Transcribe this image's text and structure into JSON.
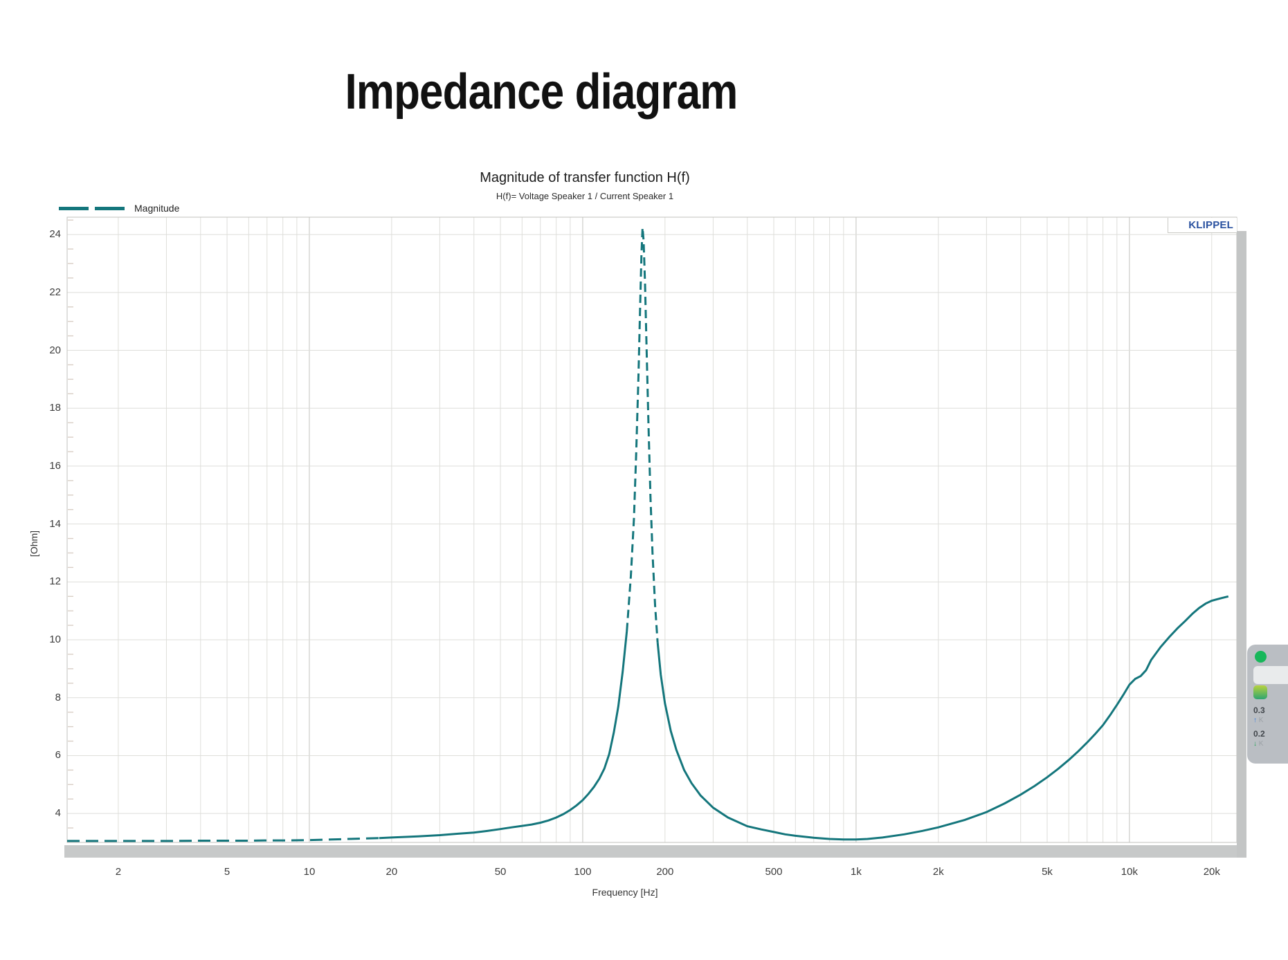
{
  "page_title": "Impedance diagram",
  "chart": {
    "title": "Magnitude of transfer function H(f)",
    "subtitle": "H(f)= Voltage Speaker 1 / Current Speaker 1",
    "legend_label": "Magnitude",
    "watermark": "KLIPPEL",
    "xlabel": "Frequency [Hz]",
    "ylabel": "[Ohm]",
    "colors": {
      "line": "#14767c",
      "watermark_blue": "#2a52a0",
      "grid": "#dededa",
      "grid_decade": "#c3c3be"
    }
  },
  "overlay_widget": {
    "rows": [
      {
        "value": "0.3",
        "arrow": "↑",
        "caption": "K"
      },
      {
        "value": "0.2",
        "arrow": "↓",
        "caption": "K"
      }
    ]
  },
  "chart_data": {
    "type": "line",
    "title": "Magnitude of transfer function H(f)",
    "subtitle": "H(f)= Voltage Speaker 1 / Current Speaker 1",
    "xlabel": "Frequency [Hz]",
    "ylabel": "[Ohm]",
    "x_scale": "log",
    "xlim": [
      1.3,
      24700
    ],
    "ylim": [
      3.0,
      24.6
    ],
    "grid": true,
    "legend_position": "top-left",
    "y_ticks": [
      4,
      6,
      8,
      10,
      12,
      14,
      16,
      18,
      20,
      22,
      24
    ],
    "y_minor_step": 0.5,
    "x_ticks": [
      {
        "v": 2,
        "label": "2"
      },
      {
        "v": 5,
        "label": "5"
      },
      {
        "v": 10,
        "label": "10"
      },
      {
        "v": 20,
        "label": "20"
      },
      {
        "v": 50,
        "label": "50"
      },
      {
        "v": 100,
        "label": "100"
      },
      {
        "v": 200,
        "label": "200"
      },
      {
        "v": 500,
        "label": "500"
      },
      {
        "v": 1000,
        "label": "1k"
      },
      {
        "v": 2000,
        "label": "2k"
      },
      {
        "v": 5000,
        "label": "5k"
      },
      {
        "v": 10000,
        "label": "10k"
      },
      {
        "v": 20000,
        "label": "20k"
      }
    ],
    "series": [
      {
        "name": "Magnitude",
        "color": "#14767c",
        "style": "dashed",
        "peak": {
          "frequency_hz": 165,
          "ohm": 24.24
        },
        "points": [
          [
            1.3,
            3.05
          ],
          [
            2,
            3.05
          ],
          [
            3,
            3.05
          ],
          [
            4,
            3.06
          ],
          [
            5,
            3.06
          ],
          [
            6,
            3.06
          ],
          [
            7,
            3.07
          ],
          [
            8,
            3.07
          ],
          [
            10,
            3.08
          ],
          [
            12,
            3.1
          ],
          [
            15,
            3.13
          ],
          [
            18,
            3.15
          ],
          [
            20,
            3.17
          ],
          [
            25,
            3.21
          ],
          [
            30,
            3.25
          ],
          [
            35,
            3.3
          ],
          [
            40,
            3.34
          ],
          [
            45,
            3.4
          ],
          [
            50,
            3.46
          ],
          [
            55,
            3.52
          ],
          [
            60,
            3.57
          ],
          [
            65,
            3.62
          ],
          [
            70,
            3.68
          ],
          [
            75,
            3.76
          ],
          [
            80,
            3.86
          ],
          [
            85,
            3.98
          ],
          [
            90,
            4.12
          ],
          [
            95,
            4.28
          ],
          [
            100,
            4.46
          ],
          [
            105,
            4.68
          ],
          [
            110,
            4.92
          ],
          [
            115,
            5.2
          ],
          [
            120,
            5.55
          ],
          [
            125,
            6.05
          ],
          [
            130,
            6.8
          ],
          [
            135,
            7.7
          ],
          [
            140,
            8.9
          ],
          [
            145,
            10.3
          ],
          [
            150,
            12.2
          ],
          [
            154,
            14.2
          ],
          [
            157,
            16.5
          ],
          [
            160,
            19.2
          ],
          [
            162,
            21.3
          ],
          [
            164,
            23.3
          ],
          [
            165.5,
            24.24
          ],
          [
            167,
            23.8
          ],
          [
            169,
            22.3
          ],
          [
            171,
            20.3
          ],
          [
            174,
            17.4
          ],
          [
            177,
            14.9
          ],
          [
            180,
            13.0
          ],
          [
            184,
            11.2
          ],
          [
            188,
            9.9
          ],
          [
            193,
            8.8
          ],
          [
            200,
            7.8
          ],
          [
            210,
            6.85
          ],
          [
            220,
            6.2
          ],
          [
            235,
            5.5
          ],
          [
            250,
            5.05
          ],
          [
            270,
            4.62
          ],
          [
            300,
            4.2
          ],
          [
            340,
            3.86
          ],
          [
            400,
            3.56
          ],
          [
            450,
            3.45
          ],
          [
            500,
            3.36
          ],
          [
            550,
            3.28
          ],
          [
            600,
            3.23
          ],
          [
            700,
            3.16
          ],
          [
            800,
            3.12
          ],
          [
            900,
            3.1
          ],
          [
            1000,
            3.1
          ],
          [
            1100,
            3.12
          ],
          [
            1250,
            3.17
          ],
          [
            1500,
            3.28
          ],
          [
            1750,
            3.4
          ],
          [
            2000,
            3.52
          ],
          [
            2500,
            3.78
          ],
          [
            3000,
            4.05
          ],
          [
            3500,
            4.35
          ],
          [
            4000,
            4.65
          ],
          [
            4500,
            4.95
          ],
          [
            5000,
            5.25
          ],
          [
            5500,
            5.55
          ],
          [
            6000,
            5.85
          ],
          [
            6500,
            6.15
          ],
          [
            7000,
            6.45
          ],
          [
            7500,
            6.75
          ],
          [
            8000,
            7.05
          ],
          [
            8500,
            7.4
          ],
          [
            9000,
            7.75
          ],
          [
            9500,
            8.1
          ],
          [
            10000,
            8.45
          ],
          [
            10500,
            8.65
          ],
          [
            11000,
            8.75
          ],
          [
            11500,
            8.95
          ],
          [
            12000,
            9.3
          ],
          [
            13000,
            9.75
          ],
          [
            14000,
            10.1
          ],
          [
            15000,
            10.4
          ],
          [
            16000,
            10.65
          ],
          [
            17000,
            10.9
          ],
          [
            18000,
            11.1
          ],
          [
            19000,
            11.25
          ],
          [
            20000,
            11.35
          ],
          [
            21500,
            11.43
          ],
          [
            23000,
            11.5
          ]
        ]
      }
    ]
  }
}
